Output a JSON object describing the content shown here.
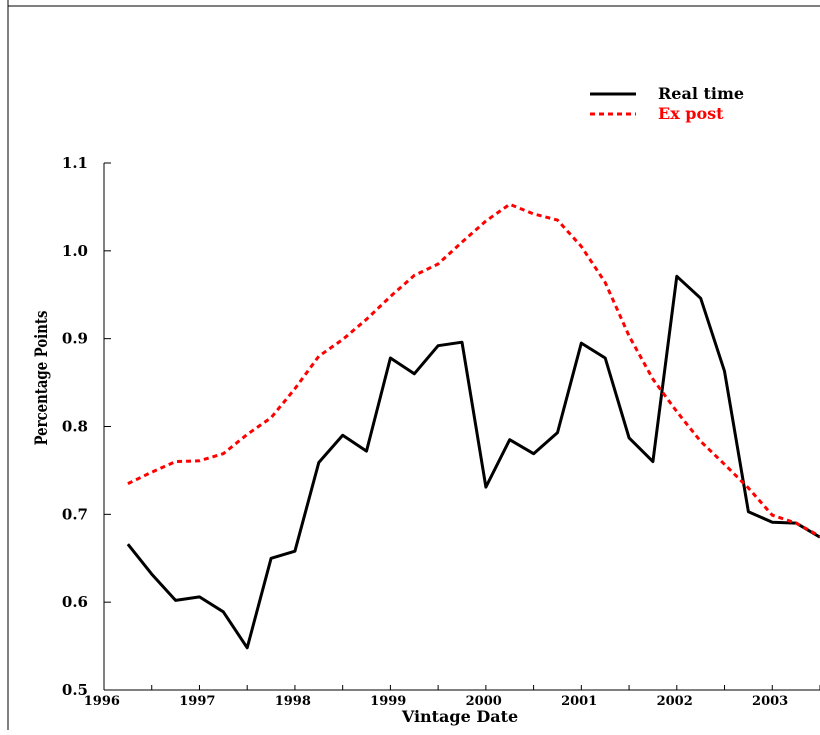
{
  "chart_data": {
    "type": "line",
    "title": "",
    "xlabel": "Vintage Date",
    "ylabel": "Percentage Points",
    "xlim": [
      1996.0,
      2003.5
    ],
    "ylim": [
      0.5,
      1.1
    ],
    "yticks": [
      "0.5",
      "0.6",
      "0.7",
      "0.8",
      "0.9",
      "1.0",
      "1.1"
    ],
    "xtick_labels": [
      "1996",
      "1997",
      "1998",
      "1999",
      "2000",
      "2001",
      "2002",
      "2003"
    ],
    "grid": false,
    "legend_position": "top-right",
    "series": [
      {
        "name": "Real time",
        "color": "#000000",
        "style": "solid",
        "x": [
          1996.25,
          1996.5,
          1996.75,
          1997.0,
          1997.25,
          1997.5,
          1997.75,
          1998.0,
          1998.25,
          1998.5,
          1998.75,
          1999.0,
          1999.25,
          1999.5,
          1999.75,
          2000.0,
          2000.25,
          2000.5,
          2000.75,
          2001.0,
          2001.25,
          2001.5,
          2001.75,
          2002.0,
          2002.25,
          2002.5,
          2002.75,
          2003.0,
          2003.25,
          2003.5
        ],
        "y": [
          0.666,
          0.632,
          0.602,
          0.606,
          0.589,
          0.548,
          0.65,
          0.658,
          0.759,
          0.79,
          0.772,
          0.878,
          0.86,
          0.892,
          0.896,
          0.731,
          0.785,
          0.769,
          0.793,
          0.895,
          0.878,
          0.787,
          0.76,
          0.971,
          0.946,
          0.863,
          0.703,
          0.691,
          0.69,
          0.674
        ]
      },
      {
        "name": "Ex post",
        "color": "#ff0000",
        "style": "dotted",
        "x": [
          1996.25,
          1996.5,
          1996.75,
          1997.0,
          1997.25,
          1997.5,
          1997.75,
          1998.0,
          1998.25,
          1998.5,
          1998.75,
          1999.0,
          1999.25,
          1999.5,
          1999.75,
          2000.0,
          2000.25,
          2000.5,
          2000.75,
          2001.0,
          2001.25,
          2001.5,
          2001.75,
          2002.0,
          2002.25,
          2002.5,
          2002.75,
          2003.0,
          2003.25,
          2003.5
        ],
        "y": [
          0.735,
          0.748,
          0.76,
          0.761,
          0.769,
          0.791,
          0.81,
          0.843,
          0.88,
          0.899,
          0.922,
          0.948,
          0.972,
          0.985,
          1.01,
          1.034,
          1.053,
          1.042,
          1.035,
          1.005,
          0.964,
          0.903,
          0.854,
          0.817,
          0.783,
          0.757,
          0.73,
          0.699,
          0.69,
          0.675
        ]
      }
    ]
  }
}
